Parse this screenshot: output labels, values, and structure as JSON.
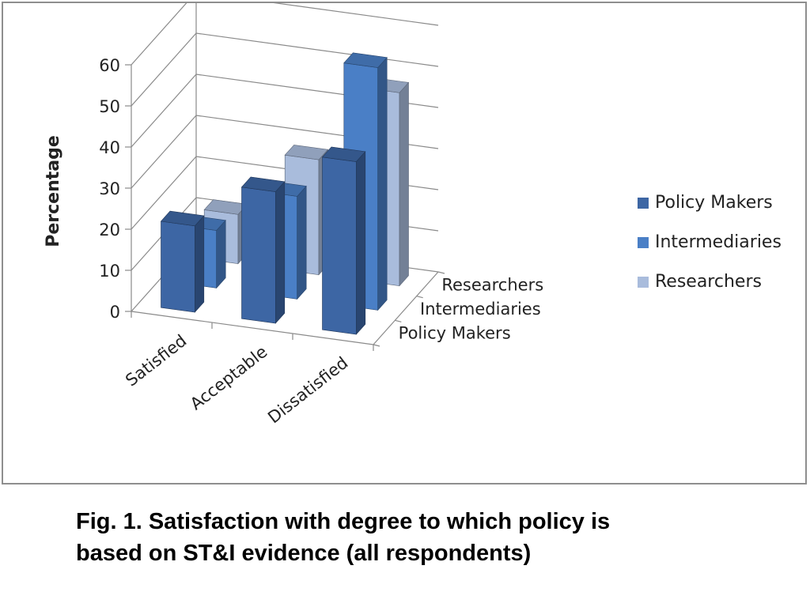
{
  "chart_data": {
    "type": "bar",
    "subtype": "3d-clustered-column",
    "ylabel": "Percentage",
    "xlabel": "",
    "ylim": [
      0,
      60
    ],
    "yticks": [
      0,
      10,
      20,
      30,
      40,
      50,
      60
    ],
    "categories": [
      "Satisfied",
      "Acceptable",
      "Dissatisfied"
    ],
    "depth_labels": [
      "Researchers",
      "Intermediaries",
      "Policy Makers"
    ],
    "series": [
      {
        "name": "Policy Makers",
        "color": "#3d66a4",
        "values": [
          21,
          32,
          42
        ]
      },
      {
        "name": "Intermediaries",
        "color": "#4a7fc6",
        "values": [
          14,
          25,
          59
        ]
      },
      {
        "name": "Researchers",
        "color": "#a9bcdc",
        "values": [
          12,
          28,
          47
        ]
      }
    ],
    "grid": true,
    "legend_position": "right"
  },
  "caption": {
    "line1": "Fig. 1.  Satisfaction with degree to which policy is",
    "line2": "based on ST&I evidence (all respondents)"
  }
}
